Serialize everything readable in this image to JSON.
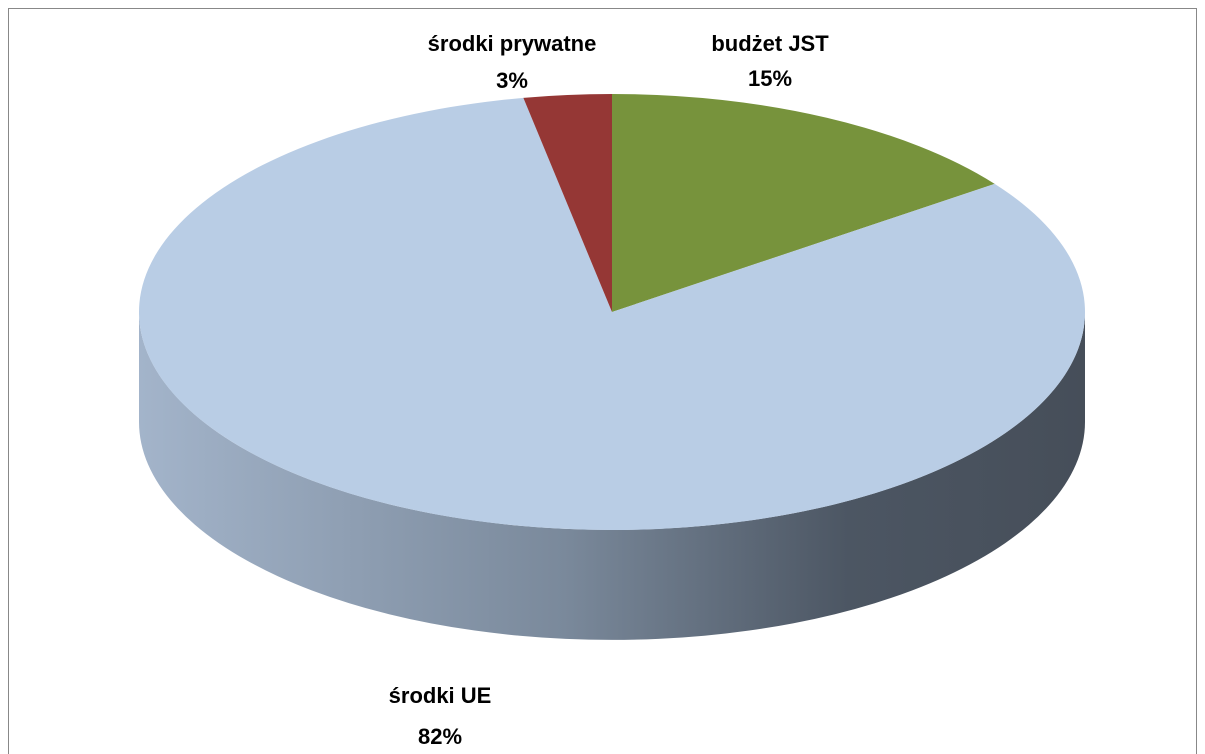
{
  "chart_data": {
    "type": "pie",
    "categories": [
      "budżet JST",
      "środki UE",
      "środki prywatne"
    ],
    "values": [
      15,
      82,
      3
    ],
    "value_labels": [
      "15%",
      "82%",
      "3%"
    ],
    "colors": [
      "#77933c",
      "#b9cde5",
      "#953735"
    ]
  }
}
